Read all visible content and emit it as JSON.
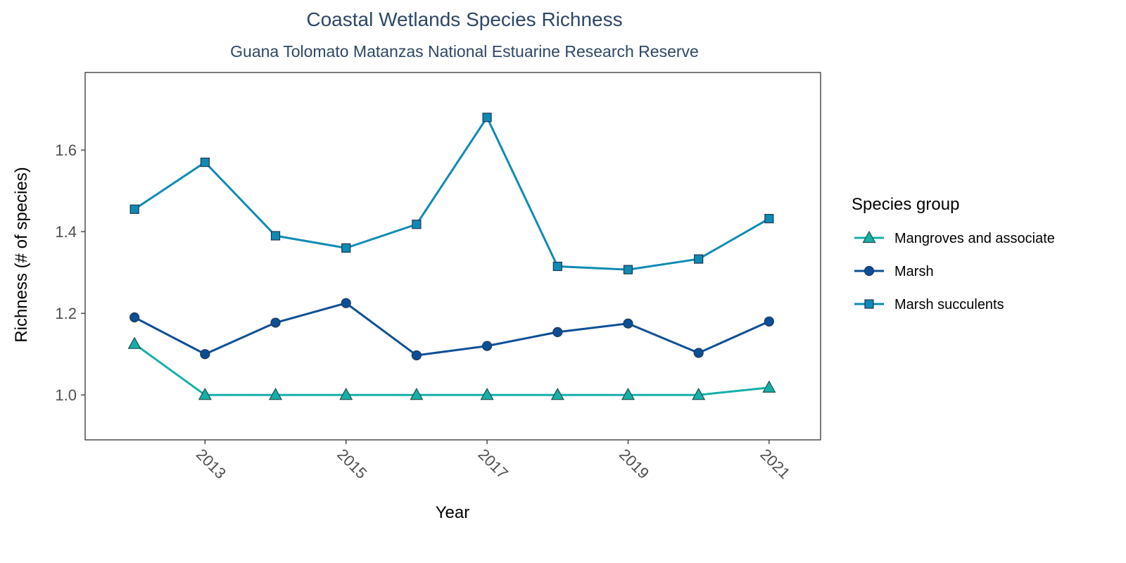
{
  "chart_data": {
    "type": "line",
    "title": "Coastal Wetlands Species Richness",
    "subtitle": "Guana Tolomato Matanzas National Estuarine Research Reserve",
    "xlabel": "Year",
    "ylabel": "Richness (# of species)",
    "x": [
      2012,
      2013,
      2014,
      2015,
      2016,
      2017,
      2018,
      2019,
      2020,
      2021
    ],
    "xticks": [
      "2013",
      "2015",
      "2017",
      "2019",
      "2021"
    ],
    "yticks": [
      "1.0",
      "1.2",
      "1.4",
      "1.6"
    ],
    "xlim": [
      2011.3,
      2021.73
    ],
    "ylim": [
      0.89,
      1.79
    ],
    "grid": false,
    "legend": {
      "title": "Species group",
      "position": "right"
    },
    "series": [
      {
        "name": "Mangroves and associate",
        "marker": "triangle",
        "color": "#14b0a9",
        "values": [
          1.125,
          1.0,
          1.0,
          1.0,
          1.0,
          1.0,
          1.0,
          1.0,
          1.0,
          1.018
        ]
      },
      {
        "name": "Marsh",
        "marker": "circle",
        "color": "#0b4f96",
        "values": [
          1.19,
          1.1,
          1.177,
          1.225,
          1.097,
          1.12,
          1.154,
          1.175,
          1.103,
          1.18
        ]
      },
      {
        "name": "Marsh succulents",
        "marker": "square",
        "color": "#0e8bb5",
        "values": [
          1.455,
          1.57,
          1.39,
          1.36,
          1.418,
          1.68,
          1.315,
          1.307,
          1.333,
          1.432
        ]
      }
    ]
  }
}
